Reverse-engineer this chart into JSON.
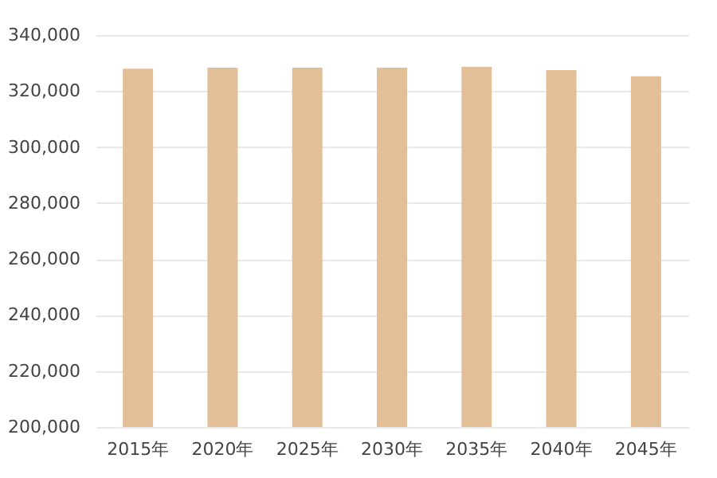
{
  "chart_data": {
    "type": "bar",
    "categories": [
      "2015年",
      "2020年",
      "2025年",
      "2030年",
      "2035年",
      "2040年",
      "2045年"
    ],
    "values": [
      328000,
      328300,
      328300,
      328300,
      328700,
      327500,
      325300
    ],
    "color": "#e2bf96",
    "ylim": [
      200000,
      340000
    ],
    "yticks": [
      {
        "value": 200000,
        "label": "200,000"
      },
      {
        "value": 220000,
        "label": "220,000"
      },
      {
        "value": 240000,
        "label": "240,000"
      },
      {
        "value": 260000,
        "label": "260,000"
      },
      {
        "value": 280000,
        "label": "280,000"
      },
      {
        "value": 300000,
        "label": "300,000"
      },
      {
        "value": 320000,
        "label": "320,000"
      },
      {
        "value": 340000,
        "label": "340,000"
      }
    ],
    "grid": "y"
  }
}
